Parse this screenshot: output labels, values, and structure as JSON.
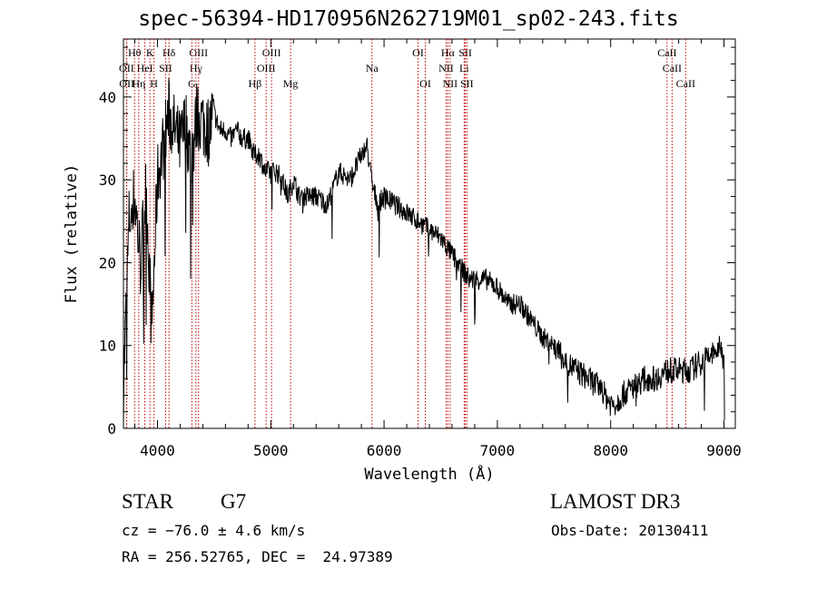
{
  "chart_data": {
    "type": "line",
    "title": "spec-56394-HD170956N262719M01_sp02-243.fits",
    "xlabel": "Wavelength (Å)",
    "ylabel": "Flux (relative)",
    "xlim": [
      3700,
      9100
    ],
    "ylim": [
      0,
      47
    ],
    "x_ticks": [
      4000,
      5000,
      6000,
      7000,
      8000,
      9000
    ],
    "y_ticks": [
      0,
      10,
      20,
      30,
      40
    ],
    "grid": false,
    "series": [
      {
        "color": "#000000",
        "x": [
          3700,
          3750,
          3800,
          3850,
          3900,
          3950,
          4000,
          4050,
          4100,
          4150,
          4200,
          4250,
          4300,
          4350,
          4400,
          4450,
          4500,
          4550,
          4600,
          4650,
          4700,
          4750,
          4800,
          4850,
          4900,
          4950,
          5000,
          5050,
          5100,
          5150,
          5200,
          5250,
          5300,
          5400,
          5500,
          5600,
          5700,
          5800,
          5850,
          5900,
          5950,
          6000,
          6100,
          6200,
          6300,
          6400,
          6500,
          6550,
          6600,
          6650,
          6700,
          6750,
          6800,
          6900,
          7000,
          7100,
          7200,
          7300,
          7400,
          7500,
          7600,
          7700,
          7800,
          7900,
          8000,
          8050,
          8100,
          8200,
          8300,
          8400,
          8500,
          8600,
          8700,
          8800,
          8900,
          9000,
          9005
        ],
        "y": [
          5,
          25,
          28,
          20,
          29,
          12,
          30,
          34,
          38,
          36,
          34,
          37,
          32,
          38,
          37,
          36,
          38,
          36,
          36,
          35,
          36,
          35,
          35,
          33,
          33,
          31,
          31,
          31,
          30,
          28,
          30,
          28,
          28,
          28,
          27,
          31,
          30,
          33,
          34,
          29,
          27,
          28,
          27,
          26,
          25,
          24,
          23,
          22,
          21,
          20,
          19,
          18,
          18,
          18,
          17,
          15,
          15,
          13,
          11,
          10,
          8,
          7,
          6,
          5,
          3,
          3,
          4,
          5,
          6,
          6,
          7,
          7,
          7,
          8,
          9,
          10,
          1
        ]
      }
    ],
    "annotations": [
      {
        "label": "H$\\theta$",
        "x": 3798,
        "row": 1
      },
      {
        "label": "K",
        "x": 3934,
        "row": 1
      },
      {
        "label": "H$\\delta$",
        "x": 4102,
        "row": 1
      },
      {
        "label": "OIII",
        "x": 4363,
        "row": 1
      },
      {
        "label": "OIII",
        "x": 5007,
        "row": 1
      },
      {
        "label": "OI",
        "x": 6300,
        "row": 1
      },
      {
        "label": "H$\\alpha$",
        "x": 6563,
        "row": 1
      },
      {
        "label": "SII",
        "x": 6717,
        "row": 1
      },
      {
        "label": "CaII",
        "x": 8498,
        "row": 1
      },
      {
        "label": "OII",
        "x": 3727,
        "row": 2
      },
      {
        "label": "HeI",
        "x": 3889,
        "row": 2
      },
      {
        "label": "SII",
        "x": 4072,
        "row": 2
      },
      {
        "label": "H$\\gamma$",
        "x": 4340,
        "row": 2
      },
      {
        "label": "OIII",
        "x": 4959,
        "row": 2
      },
      {
        "label": "Na",
        "x": 5893,
        "row": 2
      },
      {
        "label": "NII",
        "x": 6548,
        "row": 2
      },
      {
        "label": "Li",
        "x": 6707,
        "row": 2
      },
      {
        "label": "CaII",
        "x": 8542,
        "row": 2
      },
      {
        "label": "OII",
        "x": 3729,
        "row": 3
      },
      {
        "label": "H$\\eta$",
        "x": 3835,
        "row": 3
      },
      {
        "label": "H",
        "x": 3969,
        "row": 3
      },
      {
        "label": "G",
        "x": 4304,
        "row": 3
      },
      {
        "label": "H$\\beta$",
        "x": 4861,
        "row": 3
      },
      {
        "label": "Mg",
        "x": 5175,
        "row": 3
      },
      {
        "label": "OI",
        "x": 6364,
        "row": 3
      },
      {
        "label": "NII",
        "x": 6583,
        "row": 3
      },
      {
        "label": "SII",
        "x": 6731,
        "row": 3
      },
      {
        "label": "CaII",
        "x": 8662,
        "row": 3
      }
    ]
  },
  "info": {
    "object_type": "STAR",
    "subclass": "G7",
    "survey": "LAMOST DR3",
    "cz": "cz = −76.0 ± 4.6 km/s",
    "obs_date": "Obs-Date: 20130411",
    "coords": "RA = 256.52765, DEC =  24.97389"
  }
}
